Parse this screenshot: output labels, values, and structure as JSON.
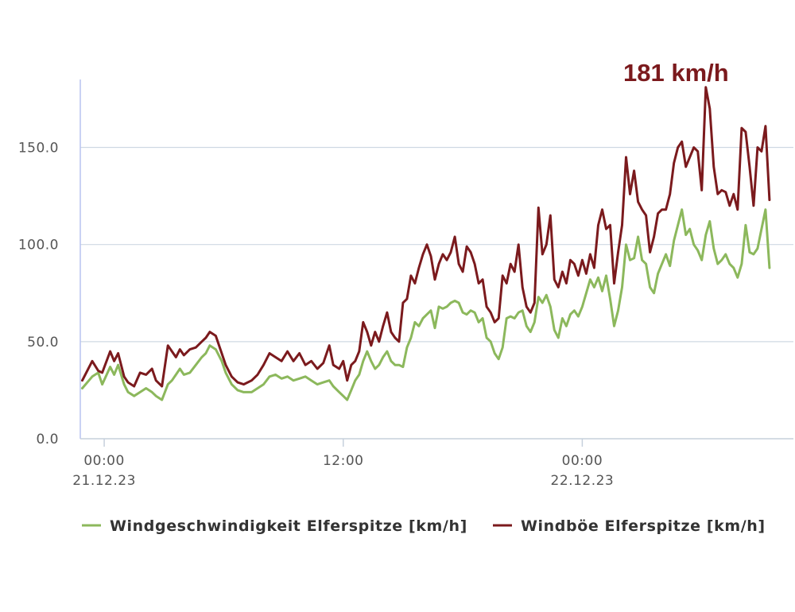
{
  "chart_data": {
    "type": "line",
    "peak_label": "181 km/h",
    "y_ticks": [
      "0.0",
      "50.0",
      "100.0",
      "150.0"
    ],
    "ylim": [
      0,
      185
    ],
    "x_ticks": [
      {
        "x": 0,
        "time": "00:00",
        "date": "21.12.23"
      },
      {
        "x": 12,
        "time": "12:00",
        "date": ""
      },
      {
        "x": 24,
        "time": "00:00",
        "date": "22.12.23"
      }
    ],
    "xlim": [
      -1.2,
      34.6
    ],
    "grid": true,
    "legend_position": "bottom",
    "series": [
      {
        "name": "Windgeschwindigkeit Elferspitze [km/h]",
        "color": "#8cb85c",
        "points": [
          [
            -1.1,
            26
          ],
          [
            -0.6,
            32
          ],
          [
            -0.3,
            34
          ],
          [
            -0.1,
            28
          ],
          [
            0.3,
            37
          ],
          [
            0.5,
            33
          ],
          [
            0.7,
            38
          ],
          [
            1.0,
            28
          ],
          [
            1.2,
            24
          ],
          [
            1.5,
            22
          ],
          [
            1.8,
            24
          ],
          [
            2.1,
            26
          ],
          [
            2.4,
            24
          ],
          [
            2.6,
            22
          ],
          [
            2.9,
            20
          ],
          [
            3.2,
            28
          ],
          [
            3.4,
            30
          ],
          [
            3.6,
            33
          ],
          [
            3.8,
            36
          ],
          [
            4.0,
            33
          ],
          [
            4.3,
            34
          ],
          [
            4.6,
            38
          ],
          [
            4.9,
            42
          ],
          [
            5.1,
            44
          ],
          [
            5.3,
            48
          ],
          [
            5.6,
            46
          ],
          [
            5.9,
            40
          ],
          [
            6.1,
            34
          ],
          [
            6.4,
            28
          ],
          [
            6.7,
            25
          ],
          [
            7.0,
            24
          ],
          [
            7.4,
            24
          ],
          [
            7.7,
            26
          ],
          [
            8.0,
            28
          ],
          [
            8.3,
            32
          ],
          [
            8.6,
            33
          ],
          [
            8.9,
            31
          ],
          [
            9.2,
            32
          ],
          [
            9.5,
            30
          ],
          [
            9.8,
            31
          ],
          [
            10.1,
            32
          ],
          [
            10.4,
            30
          ],
          [
            10.7,
            28
          ],
          [
            11.0,
            29
          ],
          [
            11.3,
            30
          ],
          [
            11.5,
            27
          ],
          [
            11.8,
            24
          ],
          [
            12.0,
            22
          ],
          [
            12.2,
            20
          ],
          [
            12.4,
            25
          ],
          [
            12.6,
            30
          ],
          [
            12.8,
            33
          ],
          [
            13.0,
            40
          ],
          [
            13.2,
            45
          ],
          [
            13.4,
            40
          ],
          [
            13.6,
            36
          ],
          [
            13.8,
            38
          ],
          [
            14.0,
            42
          ],
          [
            14.2,
            45
          ],
          [
            14.4,
            40
          ],
          [
            14.6,
            38
          ],
          [
            14.8,
            38
          ],
          [
            15.0,
            37
          ],
          [
            15.2,
            47
          ],
          [
            15.4,
            52
          ],
          [
            15.6,
            60
          ],
          [
            15.8,
            58
          ],
          [
            16.0,
            62
          ],
          [
            16.2,
            64
          ],
          [
            16.4,
            66
          ],
          [
            16.6,
            57
          ],
          [
            16.8,
            68
          ],
          [
            17.0,
            67
          ],
          [
            17.2,
            68
          ],
          [
            17.4,
            70
          ],
          [
            17.6,
            71
          ],
          [
            17.8,
            70
          ],
          [
            18.0,
            65
          ],
          [
            18.2,
            64
          ],
          [
            18.4,
            66
          ],
          [
            18.6,
            65
          ],
          [
            18.8,
            60
          ],
          [
            19.0,
            62
          ],
          [
            19.2,
            52
          ],
          [
            19.4,
            50
          ],
          [
            19.6,
            44
          ],
          [
            19.8,
            41
          ],
          [
            20.0,
            47
          ],
          [
            20.2,
            62
          ],
          [
            20.4,
            63
          ],
          [
            20.6,
            62
          ],
          [
            20.8,
            65
          ],
          [
            21.0,
            66
          ],
          [
            21.2,
            58
          ],
          [
            21.4,
            55
          ],
          [
            21.6,
            60
          ],
          [
            21.8,
            73
          ],
          [
            22.0,
            70
          ],
          [
            22.2,
            74
          ],
          [
            22.4,
            68
          ],
          [
            22.6,
            56
          ],
          [
            22.8,
            52
          ],
          [
            23.0,
            62
          ],
          [
            23.2,
            58
          ],
          [
            23.4,
            64
          ],
          [
            23.6,
            66
          ],
          [
            23.8,
            63
          ],
          [
            24.0,
            68
          ],
          [
            24.2,
            75
          ],
          [
            24.4,
            82
          ],
          [
            24.6,
            78
          ],
          [
            24.8,
            83
          ],
          [
            25.0,
            76
          ],
          [
            25.2,
            84
          ],
          [
            25.4,
            72
          ],
          [
            25.6,
            58
          ],
          [
            25.8,
            66
          ],
          [
            26.0,
            78
          ],
          [
            26.2,
            100
          ],
          [
            26.4,
            92
          ],
          [
            26.6,
            93
          ],
          [
            26.8,
            104
          ],
          [
            27.0,
            92
          ],
          [
            27.2,
            90
          ],
          [
            27.4,
            78
          ],
          [
            27.6,
            75
          ],
          [
            27.8,
            85
          ],
          [
            28.0,
            90
          ],
          [
            28.2,
            95
          ],
          [
            28.4,
            89
          ],
          [
            28.6,
            102
          ],
          [
            28.8,
            110
          ],
          [
            29.0,
            118
          ],
          [
            29.2,
            105
          ],
          [
            29.4,
            108
          ],
          [
            29.6,
            100
          ],
          [
            29.8,
            97
          ],
          [
            30.0,
            92
          ],
          [
            30.2,
            105
          ],
          [
            30.4,
            112
          ],
          [
            30.6,
            98
          ],
          [
            30.8,
            90
          ],
          [
            31.0,
            92
          ],
          [
            31.2,
            95
          ],
          [
            31.4,
            90
          ],
          [
            31.6,
            88
          ],
          [
            31.8,
            83
          ],
          [
            32.0,
            90
          ],
          [
            32.2,
            110
          ],
          [
            32.4,
            96
          ],
          [
            32.6,
            95
          ],
          [
            32.8,
            98
          ],
          [
            33.0,
            108
          ],
          [
            33.2,
            118
          ],
          [
            33.4,
            88
          ]
        ]
      },
      {
        "name": "Windböe Elferspitze [km/h]",
        "color": "#7b1a1d",
        "points": [
          [
            -1.1,
            30
          ],
          [
            -0.6,
            40
          ],
          [
            -0.3,
            35
          ],
          [
            -0.1,
            34
          ],
          [
            0.3,
            45
          ],
          [
            0.5,
            40
          ],
          [
            0.7,
            44
          ],
          [
            1.0,
            32
          ],
          [
            1.2,
            29
          ],
          [
            1.5,
            27
          ],
          [
            1.8,
            34
          ],
          [
            2.1,
            33
          ],
          [
            2.4,
            36
          ],
          [
            2.6,
            30
          ],
          [
            2.9,
            27
          ],
          [
            3.2,
            48
          ],
          [
            3.4,
            45
          ],
          [
            3.6,
            42
          ],
          [
            3.8,
            46
          ],
          [
            4.0,
            43
          ],
          [
            4.3,
            46
          ],
          [
            4.6,
            47
          ],
          [
            4.9,
            50
          ],
          [
            5.1,
            52
          ],
          [
            5.3,
            55
          ],
          [
            5.6,
            53
          ],
          [
            5.9,
            44
          ],
          [
            6.1,
            38
          ],
          [
            6.4,
            32
          ],
          [
            6.7,
            29
          ],
          [
            7.0,
            28
          ],
          [
            7.4,
            30
          ],
          [
            7.7,
            33
          ],
          [
            8.0,
            38
          ],
          [
            8.3,
            44
          ],
          [
            8.6,
            42
          ],
          [
            8.9,
            40
          ],
          [
            9.2,
            45
          ],
          [
            9.5,
            40
          ],
          [
            9.8,
            44
          ],
          [
            10.1,
            38
          ],
          [
            10.4,
            40
          ],
          [
            10.7,
            36
          ],
          [
            11.0,
            39
          ],
          [
            11.3,
            48
          ],
          [
            11.5,
            38
          ],
          [
            11.8,
            36
          ],
          [
            12.0,
            40
          ],
          [
            12.2,
            30
          ],
          [
            12.4,
            38
          ],
          [
            12.6,
            40
          ],
          [
            12.8,
            45
          ],
          [
            13.0,
            60
          ],
          [
            13.2,
            55
          ],
          [
            13.4,
            48
          ],
          [
            13.6,
            55
          ],
          [
            13.8,
            50
          ],
          [
            14.0,
            58
          ],
          [
            14.2,
            65
          ],
          [
            14.4,
            55
          ],
          [
            14.6,
            52
          ],
          [
            14.8,
            50
          ],
          [
            15.0,
            70
          ],
          [
            15.2,
            72
          ],
          [
            15.4,
            84
          ],
          [
            15.6,
            80
          ],
          [
            15.8,
            88
          ],
          [
            16.0,
            95
          ],
          [
            16.2,
            100
          ],
          [
            16.4,
            94
          ],
          [
            16.6,
            82
          ],
          [
            16.8,
            90
          ],
          [
            17.0,
            95
          ],
          [
            17.2,
            92
          ],
          [
            17.4,
            96
          ],
          [
            17.6,
            104
          ],
          [
            17.8,
            90
          ],
          [
            18.0,
            86
          ],
          [
            18.2,
            99
          ],
          [
            18.4,
            96
          ],
          [
            18.6,
            90
          ],
          [
            18.8,
            80
          ],
          [
            19.0,
            82
          ],
          [
            19.2,
            68
          ],
          [
            19.4,
            65
          ],
          [
            19.6,
            60
          ],
          [
            19.8,
            62
          ],
          [
            20.0,
            84
          ],
          [
            20.2,
            80
          ],
          [
            20.4,
            90
          ],
          [
            20.6,
            86
          ],
          [
            20.8,
            100
          ],
          [
            21.0,
            78
          ],
          [
            21.2,
            68
          ],
          [
            21.4,
            65
          ],
          [
            21.6,
            70
          ],
          [
            21.8,
            119
          ],
          [
            22.0,
            95
          ],
          [
            22.2,
            100
          ],
          [
            22.4,
            115
          ],
          [
            22.6,
            82
          ],
          [
            22.8,
            78
          ],
          [
            23.0,
            86
          ],
          [
            23.2,
            80
          ],
          [
            23.4,
            92
          ],
          [
            23.6,
            90
          ],
          [
            23.8,
            84
          ],
          [
            24.0,
            92
          ],
          [
            24.2,
            85
          ],
          [
            24.4,
            95
          ],
          [
            24.6,
            88
          ],
          [
            24.8,
            110
          ],
          [
            25.0,
            118
          ],
          [
            25.2,
            108
          ],
          [
            25.4,
            110
          ],
          [
            25.6,
            80
          ],
          [
            25.8,
            96
          ],
          [
            26.0,
            110
          ],
          [
            26.2,
            145
          ],
          [
            26.4,
            126
          ],
          [
            26.6,
            138
          ],
          [
            26.8,
            122
          ],
          [
            27.0,
            118
          ],
          [
            27.2,
            115
          ],
          [
            27.4,
            96
          ],
          [
            27.6,
            104
          ],
          [
            27.8,
            116
          ],
          [
            28.0,
            118
          ],
          [
            28.2,
            118
          ],
          [
            28.4,
            126
          ],
          [
            28.6,
            142
          ],
          [
            28.8,
            150
          ],
          [
            29.0,
            153
          ],
          [
            29.2,
            140
          ],
          [
            29.4,
            145
          ],
          [
            29.6,
            150
          ],
          [
            29.8,
            148
          ],
          [
            30.0,
            128
          ],
          [
            30.2,
            181
          ],
          [
            30.4,
            170
          ],
          [
            30.6,
            140
          ],
          [
            30.8,
            126
          ],
          [
            31.0,
            128
          ],
          [
            31.2,
            127
          ],
          [
            31.4,
            120
          ],
          [
            31.6,
            126
          ],
          [
            31.8,
            118
          ],
          [
            32.0,
            160
          ],
          [
            32.2,
            158
          ],
          [
            32.4,
            140
          ],
          [
            32.6,
            120
          ],
          [
            32.8,
            150
          ],
          [
            33.0,
            148
          ],
          [
            33.2,
            161
          ],
          [
            33.4,
            123
          ]
        ]
      }
    ]
  }
}
